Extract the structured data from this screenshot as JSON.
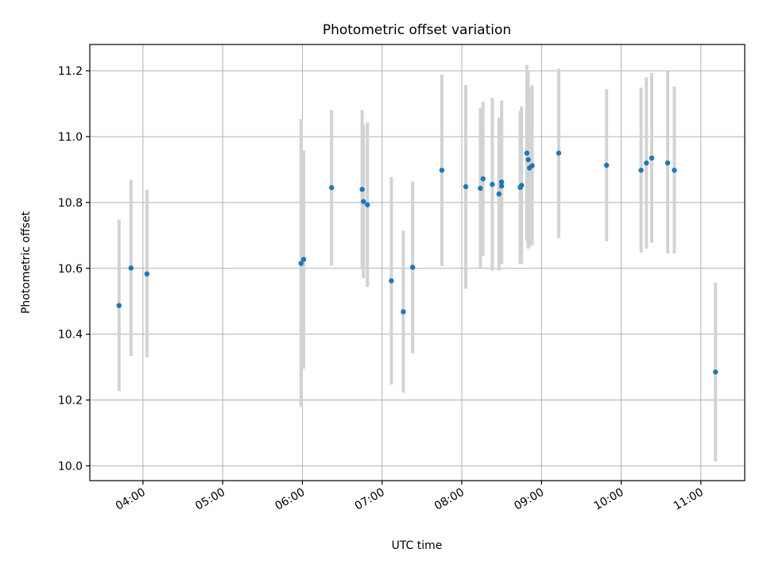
{
  "chart_data": {
    "type": "scatter",
    "title": "Photometric offset variation",
    "xlabel": "UTC time",
    "ylabel": "Photometric offset",
    "x_axis": {
      "kind": "time",
      "min": "03:20",
      "max": "11:33",
      "ticks": [
        "04:00",
        "05:00",
        "06:00",
        "07:00",
        "08:00",
        "09:00",
        "10:00",
        "11:00"
      ]
    },
    "y_axis": {
      "min": 9.955,
      "max": 11.28,
      "ticks": [
        "10.0",
        "10.2",
        "10.4",
        "10.6",
        "10.8",
        "11.0",
        "11.2"
      ]
    },
    "grid": true,
    "colors": {
      "point": "#1f77b4",
      "errorbar": "#d3d3d3"
    },
    "points": [
      {
        "time": "03:42",
        "y": 10.487,
        "low": 10.227,
        "high": 10.748
      },
      {
        "time": "03:51",
        "y": 10.601,
        "low": 10.334,
        "high": 10.869
      },
      {
        "time": "04:03",
        "y": 10.583,
        "low": 10.329,
        "high": 10.839
      },
      {
        "time": "05:59",
        "y": 10.615,
        "low": 10.18,
        "high": 11.053
      },
      {
        "time": "06:01",
        "y": 10.627,
        "low": 10.295,
        "high": 10.958
      },
      {
        "time": "06:22",
        "y": 10.845,
        "low": 10.608,
        "high": 11.081
      },
      {
        "time": "06:45",
        "y": 10.84,
        "low": 10.6,
        "high": 11.081
      },
      {
        "time": "06:46",
        "y": 10.803,
        "low": 10.57,
        "high": 11.036
      },
      {
        "time": "06:49",
        "y": 10.793,
        "low": 10.543,
        "high": 11.043
      },
      {
        "time": "07:07",
        "y": 10.562,
        "low": 10.247,
        "high": 10.877
      },
      {
        "time": "07:16",
        "y": 10.468,
        "low": 10.222,
        "high": 10.714
      },
      {
        "time": "07:23",
        "y": 10.603,
        "low": 10.342,
        "high": 10.864
      },
      {
        "time": "07:45",
        "y": 10.898,
        "low": 10.607,
        "high": 11.189
      },
      {
        "time": "08:03",
        "y": 10.848,
        "low": 10.538,
        "high": 11.157
      },
      {
        "time": "08:14",
        "y": 10.843,
        "low": 10.598,
        "high": 11.088
      },
      {
        "time": "08:16",
        "y": 10.872,
        "low": 10.638,
        "high": 11.106
      },
      {
        "time": "08:23",
        "y": 10.855,
        "low": 10.593,
        "high": 11.117
      },
      {
        "time": "08:28",
        "y": 10.826,
        "low": 10.593,
        "high": 11.058
      },
      {
        "time": "08:30",
        "y": 10.862,
        "low": 10.613,
        "high": 11.11
      },
      {
        "time": "08:30",
        "y": 10.85,
        "low": 10.613,
        "high": 11.087
      },
      {
        "time": "08:44",
        "y": 10.846,
        "low": 10.613,
        "high": 11.079
      },
      {
        "time": "08:45",
        "y": 10.852,
        "low": 10.613,
        "high": 11.092
      },
      {
        "time": "08:49",
        "y": 10.95,
        "low": 10.683,
        "high": 11.218
      },
      {
        "time": "08:50",
        "y": 10.93,
        "low": 10.66,
        "high": 11.2
      },
      {
        "time": "08:51",
        "y": 10.905,
        "low": 10.665,
        "high": 11.145
      },
      {
        "time": "08:53",
        "y": 10.912,
        "low": 10.67,
        "high": 11.156
      },
      {
        "time": "09:13",
        "y": 10.95,
        "low": 10.692,
        "high": 11.207
      },
      {
        "time": "09:49",
        "y": 10.913,
        "low": 10.682,
        "high": 11.144
      },
      {
        "time": "10:15",
        "y": 10.898,
        "low": 10.648,
        "high": 11.149
      },
      {
        "time": "10:19",
        "y": 10.92,
        "low": 10.66,
        "high": 11.18
      },
      {
        "time": "10:23",
        "y": 10.935,
        "low": 10.678,
        "high": 11.193
      },
      {
        "time": "10:35",
        "y": 10.92,
        "low": 10.645,
        "high": 11.2
      },
      {
        "time": "10:40",
        "y": 10.898,
        "low": 10.645,
        "high": 11.152
      },
      {
        "time": "11:11",
        "y": 10.285,
        "low": 10.013,
        "high": 10.556
      }
    ]
  }
}
